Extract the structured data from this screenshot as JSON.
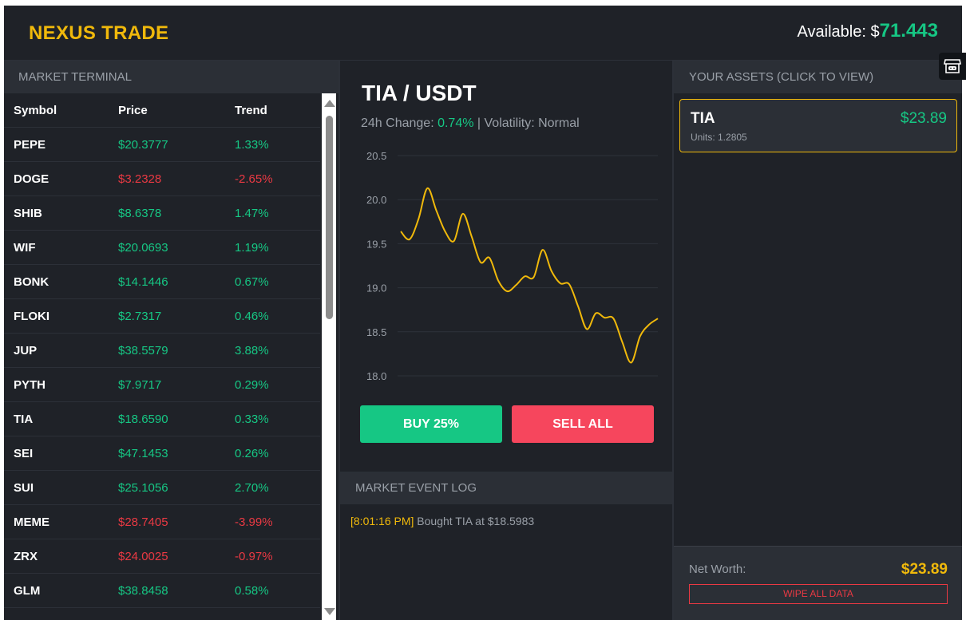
{
  "header": {
    "logo": "NEXUS TRADE",
    "balance_label": "Available: ",
    "balance_currency": "$",
    "balance_amount": "71.443"
  },
  "market": {
    "title": "MARKET TERMINAL",
    "columns": [
      "Symbol",
      "Price",
      "Trend"
    ],
    "rows": [
      {
        "symbol": "PEPE",
        "price": "$20.3777",
        "trend": "1.33%",
        "direction": "up"
      },
      {
        "symbol": "DOGE",
        "price": "$3.2328",
        "trend": "-2.65%",
        "direction": "down"
      },
      {
        "symbol": "SHIB",
        "price": "$8.6378",
        "trend": "1.47%",
        "direction": "up"
      },
      {
        "symbol": "WIF",
        "price": "$20.0693",
        "trend": "1.19%",
        "direction": "up"
      },
      {
        "symbol": "BONK",
        "price": "$14.1446",
        "trend": "0.67%",
        "direction": "up"
      },
      {
        "symbol": "FLOKI",
        "price": "$2.7317",
        "trend": "0.46%",
        "direction": "up"
      },
      {
        "symbol": "JUP",
        "price": "$38.5579",
        "trend": "3.88%",
        "direction": "up"
      },
      {
        "symbol": "PYTH",
        "price": "$7.9717",
        "trend": "0.29%",
        "direction": "up"
      },
      {
        "symbol": "TIA",
        "price": "$18.6590",
        "trend": "0.33%",
        "direction": "up"
      },
      {
        "symbol": "SEI",
        "price": "$47.1453",
        "trend": "0.26%",
        "direction": "up"
      },
      {
        "symbol": "SUI",
        "price": "$25.1056",
        "trend": "2.70%",
        "direction": "up"
      },
      {
        "symbol": "MEME",
        "price": "$28.7405",
        "trend": "-3.99%",
        "direction": "down"
      },
      {
        "symbol": "ZRX",
        "price": "$24.0025",
        "trend": "-0.97%",
        "direction": "down"
      },
      {
        "symbol": "GLM",
        "price": "$38.8458",
        "trend": "0.58%",
        "direction": "up"
      }
    ]
  },
  "detail": {
    "pair": "TIA / USDT",
    "change_label": "24h Change: ",
    "change_value": "0.74%",
    "volatility_text": " | Volatility: Normal",
    "buy_label": "BUY 25%",
    "sell_label": "SELL ALL"
  },
  "chart_data": {
    "type": "line",
    "title": "",
    "xlabel": "",
    "ylabel": "",
    "ylim": [
      18.0,
      20.5
    ],
    "yticks": [
      "20.5",
      "20.0",
      "19.5",
      "19.0",
      "18.5",
      "18.0"
    ],
    "grid": true,
    "legend": "none",
    "color": "#f0b90b",
    "series": [
      {
        "values": [
          19.64,
          19.55,
          19.78,
          20.13,
          19.88,
          19.64,
          19.53,
          19.84,
          19.58,
          19.29,
          19.34,
          19.08,
          18.96,
          19.03,
          19.13,
          19.12,
          19.43,
          19.19,
          19.05,
          19.04,
          18.79,
          18.53,
          18.71,
          18.66,
          18.65,
          18.38,
          18.15,
          18.45,
          18.58,
          18.65
        ]
      }
    ]
  },
  "log": {
    "title": "MARKET EVENT LOG",
    "entries": [
      {
        "time": "[8:01:16 PM]",
        "text": " Bought TIA at $18.5983"
      }
    ]
  },
  "assets": {
    "title": "YOUR ASSETS (CLICK TO VIEW)",
    "items": [
      {
        "symbol": "TIA",
        "units": "Units: 1.2805",
        "value": "$23.89"
      }
    ],
    "net_worth_label": "Net Worth:",
    "net_worth_value": "$23.89",
    "wipe_label": "WIPE ALL DATA"
  },
  "widget": {
    "icon": "gamepad-store-icon"
  }
}
